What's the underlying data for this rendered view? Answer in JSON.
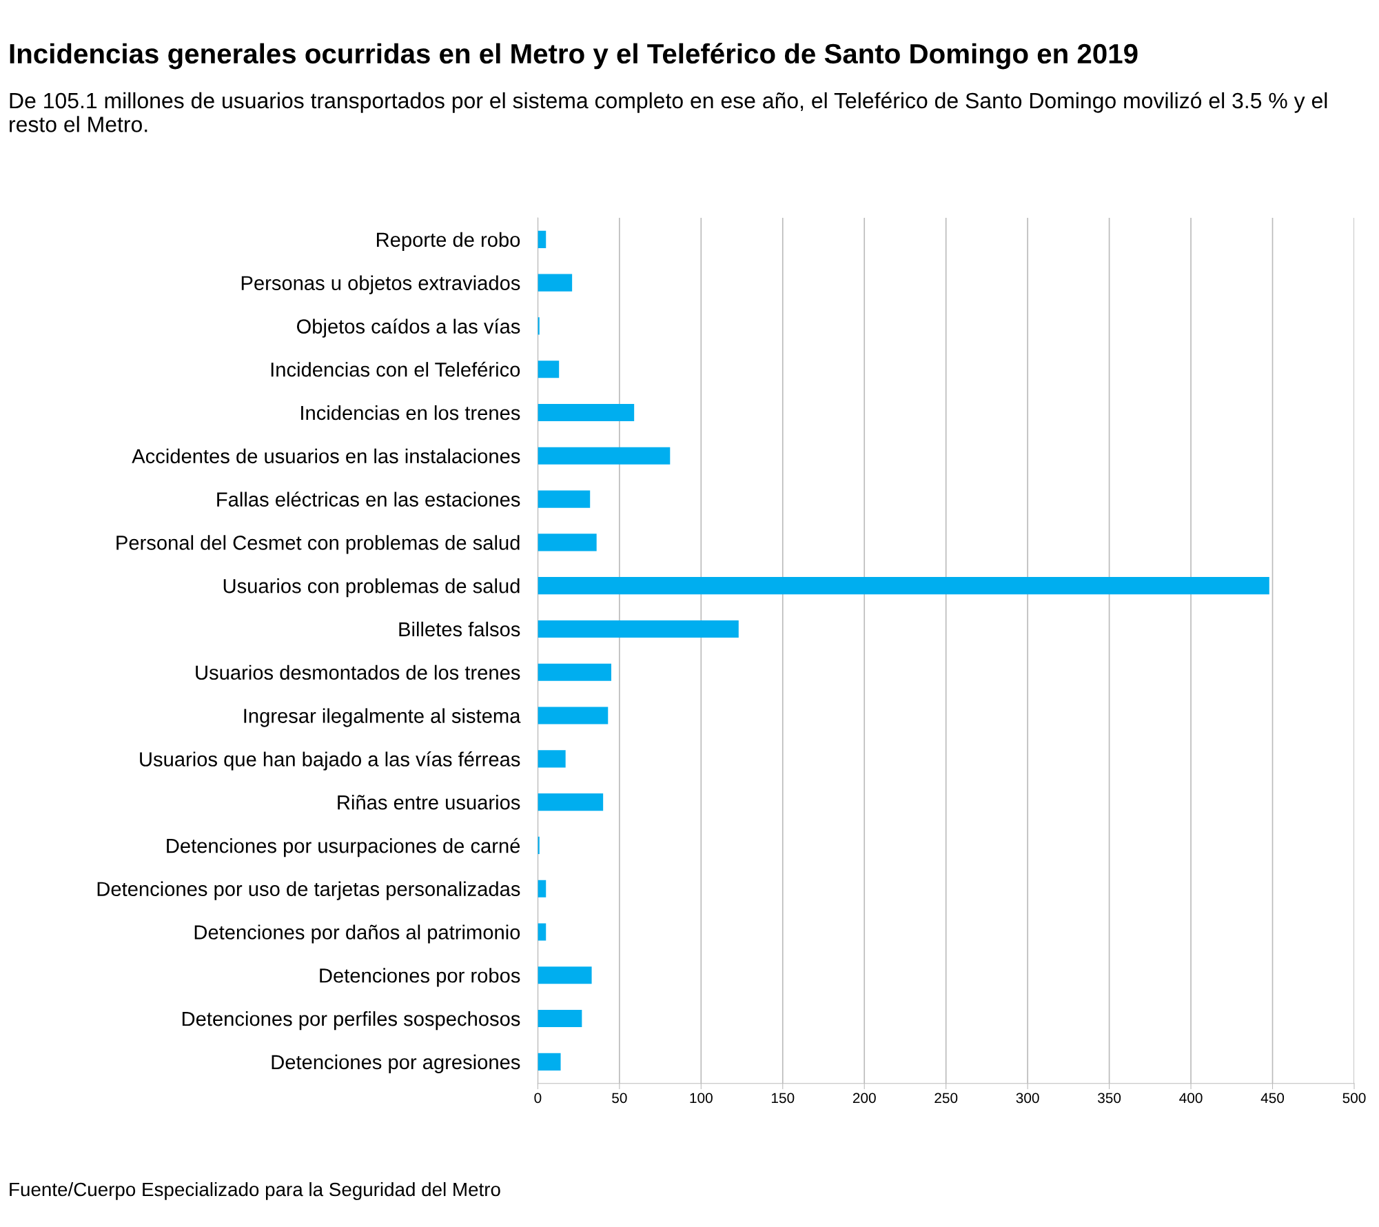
{
  "chart_data": {
    "type": "bar",
    "orientation": "horizontal",
    "title": "Incidencias generales ocurridas en el Metro y el Teleférico de Santo Domingo en 2019",
    "subtitle": "De 105.1 millones de usuarios transportados por el sistema completo en ese año, el Teleférico de Santo Domingo movilizó el 3.5 % y el resto el Metro.",
    "categories": [
      "Reporte de robo",
      "Personas u objetos extraviados",
      "Objetos caídos a las vías",
      "Incidencias con el Teleférico",
      "Incidencias en los trenes",
      "Accidentes de usuarios en las instalaciones",
      "Fallas eléctricas en las estaciones",
      "Personal del Cesmet con problemas de salud",
      "Usuarios con problemas de salud",
      "Billetes falsos",
      "Usuarios desmontados de los trenes",
      "Ingresar ilegalmente al sistema",
      "Usuarios que han bajado a las vías férreas",
      "Riñas entre usuarios",
      "Detenciones por usurpaciones de carné",
      "Detenciones por uso de tarjetas personalizadas",
      "Detenciones por daños al patrimonio",
      "Detenciones por robos",
      "Detenciones por perfiles sospechosos",
      "Detenciones por agresiones"
    ],
    "values": [
      5,
      21,
      1,
      13,
      59,
      81,
      32,
      36,
      448,
      123,
      45,
      43,
      17,
      40,
      1,
      5,
      5,
      33,
      27,
      14
    ],
    "color": "#00aeef",
    "xlim": [
      0,
      500
    ],
    "xticks": [
      0,
      50,
      100,
      150,
      200,
      250,
      300,
      350,
      400,
      450,
      500
    ],
    "grid": "x",
    "annotations": [
      "Fuente/Cuerpo Especializado para la Seguridad del Metro"
    ]
  }
}
